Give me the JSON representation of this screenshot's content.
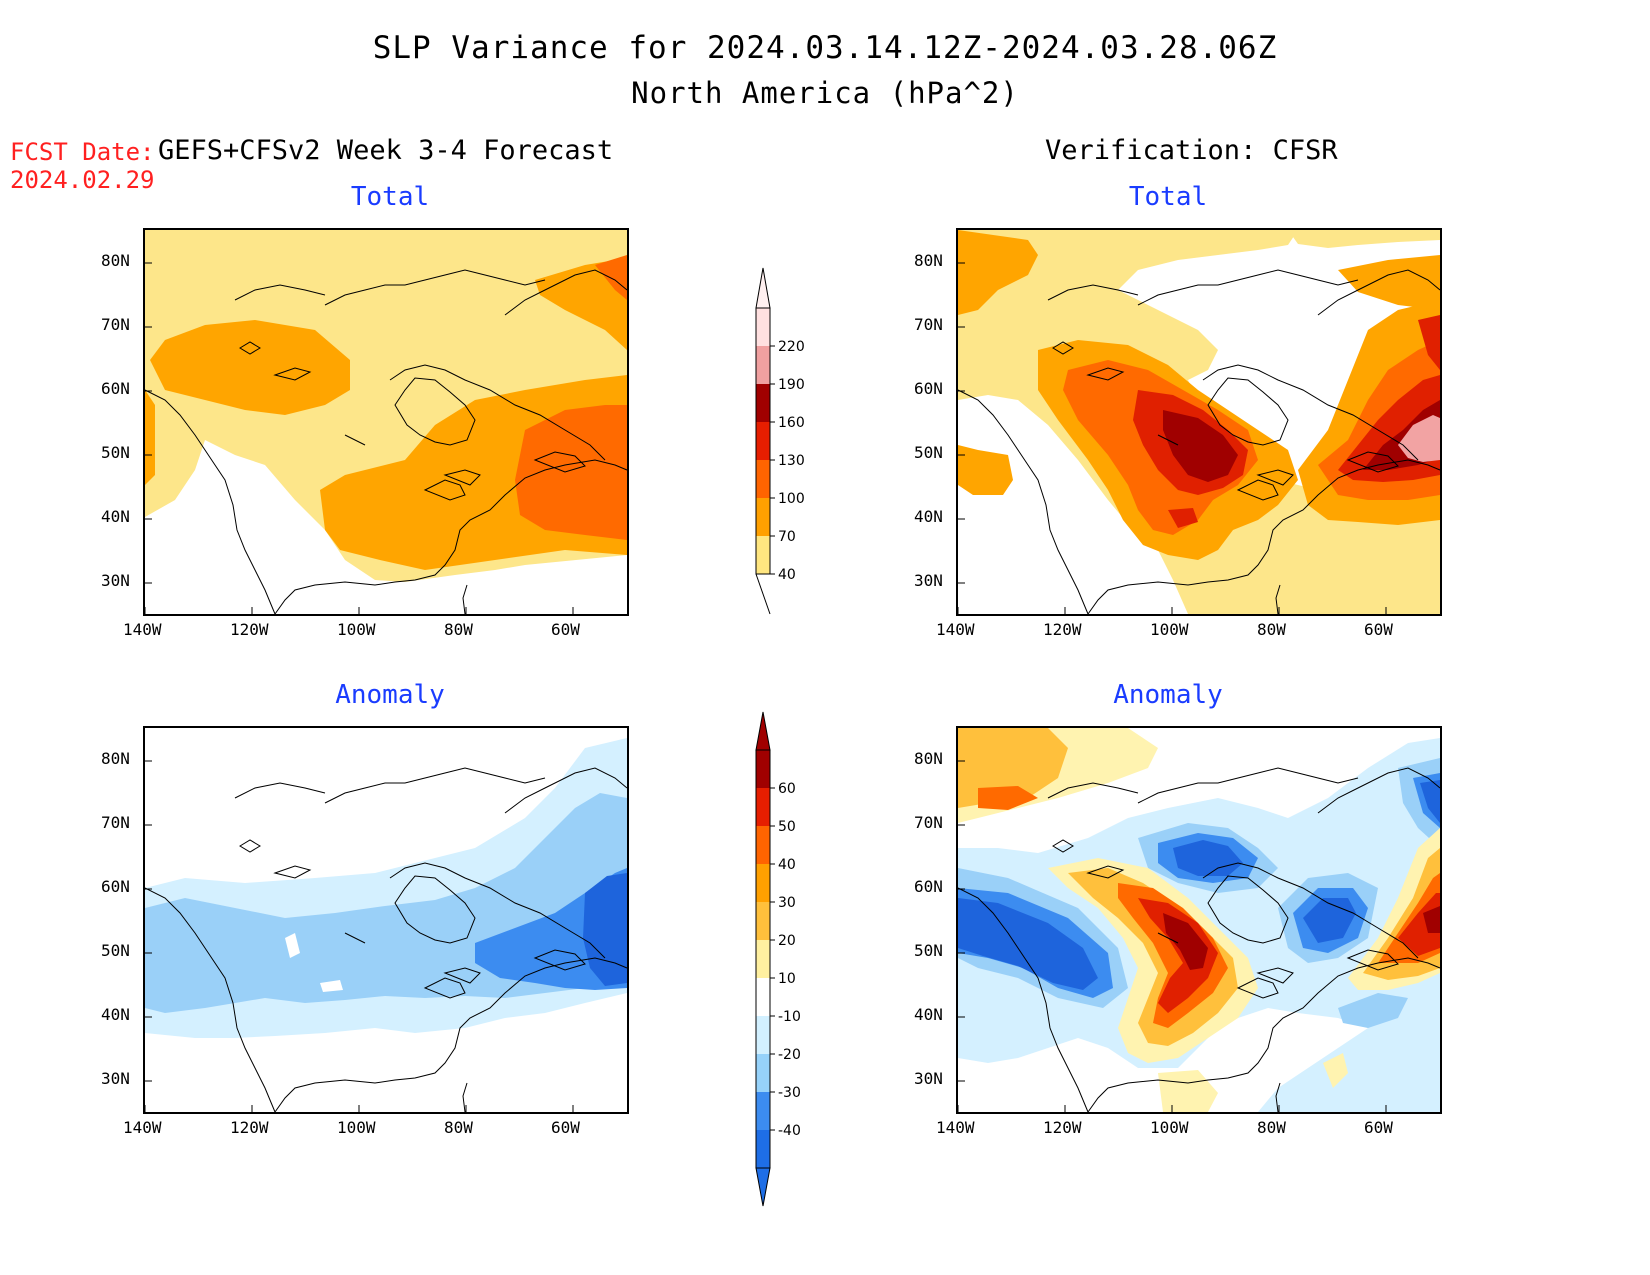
{
  "title": "SLP Variance for 2024.03.14.12Z-2024.03.28.06Z",
  "subtitle": "North America (hPa^2)",
  "fcst_date_label": "FCST Date:",
  "fcst_date_value": "2024.02.29",
  "forecast_header": "GEFS+CFSv2 Week 3-4 Forecast",
  "verification_header": "Verification: CFSR",
  "panels": {
    "fc_total_title": "Total",
    "vf_total_title": "Total",
    "fc_anom_title": "Anomaly",
    "vf_anom_title": "Anomaly"
  },
  "axes": {
    "lat_ticks": [
      "80N",
      "70N",
      "60N",
      "50N",
      "40N",
      "30N"
    ],
    "lon_ticks": [
      "140W",
      "120W",
      "100W",
      "80W",
      "60W"
    ]
  },
  "colorbars": {
    "total": {
      "labels": [
        "40",
        "70",
        "100",
        "130",
        "160",
        "190",
        "220"
      ],
      "colors": [
        "#ffe680",
        "#ffa000",
        "#ff6400",
        "#e61e00",
        "#a00000",
        "#f0a0a0",
        "#ffe0e0"
      ]
    },
    "anomaly": {
      "labels": [
        "-40",
        "-30",
        "-20",
        "-10",
        "10",
        "20",
        "30",
        "40",
        "50",
        "60"
      ],
      "colors": [
        "#1e6ee6",
        "#3c8cf0",
        "#96d2fa",
        "#d2f0ff",
        "#ffffff",
        "#fff0a0",
        "#ffc03c",
        "#ffa000",
        "#ff6400",
        "#e61e00",
        "#a00000"
      ]
    }
  },
  "field_colors": {
    "light": "#fde68a",
    "mid": "#ffa500",
    "strong": "#ff6a00",
    "red": "#e02000",
    "dark": "#a00000",
    "pink": "#f2a3a3",
    "blue_light": "#d4f0ff",
    "blue_mid": "#9ad0f8",
    "blue_strong": "#3c8cf0",
    "blue_dark": "#1e64dc",
    "cream": "#fff3b0"
  }
}
